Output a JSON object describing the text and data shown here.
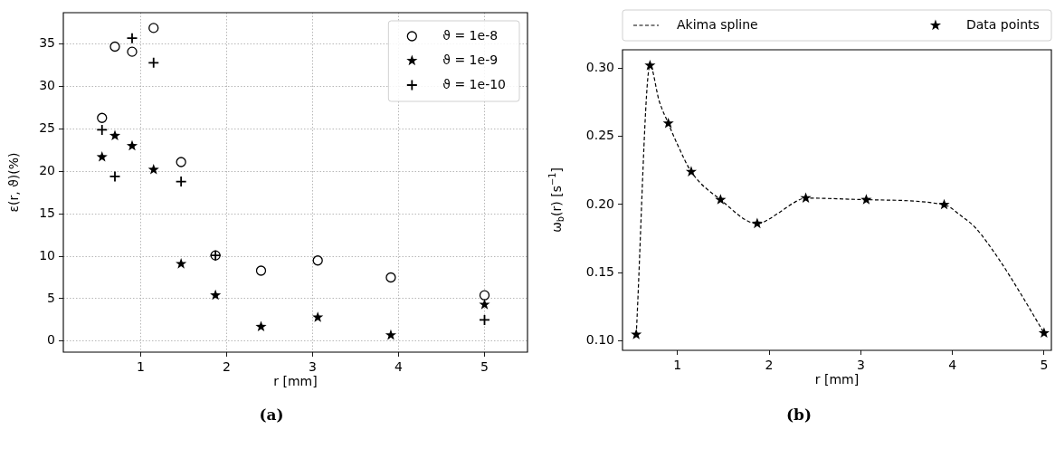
{
  "chart_data": [
    {
      "type": "scatter",
      "xlabel": "r [mm]",
      "ylabel": "ε(r, ϑ)(%)",
      "x": [
        0.55,
        0.7,
        0.9,
        1.15,
        1.47,
        1.87,
        2.4,
        3.06,
        3.91,
        5.0
      ],
      "series": [
        {
          "name": "ϑ = 1e-8",
          "color": "#000000",
          "marker": "circle",
          "values": [
            26.3,
            34.7,
            34.1,
            36.9,
            21.1,
            10.1,
            8.3,
            9.5,
            7.5,
            5.4
          ]
        },
        {
          "name": "ϑ = 1e-9",
          "color": "#000000",
          "marker": "star",
          "values": [
            21.7,
            24.2,
            23.0,
            20.2,
            9.1,
            5.4,
            1.7,
            2.8,
            0.7,
            4.3
          ]
        },
        {
          "name": "ϑ = 1e-10",
          "color": "#000000",
          "marker": "cross",
          "values": [
            24.9,
            19.4,
            35.7,
            32.8,
            18.8,
            10.1,
            null,
            null,
            null,
            2.5
          ]
        }
      ],
      "xlim": [
        0.1,
        5.5
      ],
      "ylim": [
        -1.3,
        38.7
      ],
      "xticks": [
        1,
        2,
        3,
        4,
        5
      ],
      "yticks": [
        0,
        5,
        10,
        15,
        20,
        25,
        30,
        35
      ],
      "grid": true,
      "legend": "top right",
      "annotations": [
        "(a)"
      ]
    },
    {
      "type": "scatter",
      "xlabel": "r [mm]",
      "ylabel": "ω$_{b}$(r) [s$^{−1}$]",
      "series": [
        {
          "name": "Akima spline",
          "type": "line",
          "color": "#000000",
          "marker": "none",
          "line_style": "dashed",
          "x": [
            0.55,
            0.7,
            0.8,
            0.9,
            1.0,
            1.15,
            1.47,
            1.87,
            2.1,
            2.25,
            2.4,
            3.06,
            3.91,
            4.1,
            4.25,
            4.5,
            4.75,
            5.0
          ],
          "values": [
            0.1046,
            0.302,
            0.276,
            0.2595,
            0.244,
            0.224,
            0.2035,
            0.186,
            0.1936,
            0.2005,
            0.2047,
            0.2035,
            0.1998,
            0.1914,
            0.183,
            0.1606,
            0.134,
            0.1057
          ]
        },
        {
          "name": "Data points",
          "type": "scatter",
          "color": "#000000",
          "marker": "star",
          "x": [
            0.55,
            0.7,
            0.9,
            1.15,
            1.47,
            1.87,
            2.4,
            3.06,
            3.91,
            5.0
          ],
          "values": [
            0.1046,
            0.302,
            0.2595,
            0.224,
            0.2035,
            0.186,
            0.2047,
            0.2035,
            0.1998,
            0.1057
          ]
        }
      ],
      "xlim": [
        0.4,
        5.08
      ],
      "ylim": [
        0.093,
        0.3135
      ],
      "xticks": [
        1,
        2,
        3,
        4,
        5
      ],
      "yticks": [
        {
          "value": 0.1,
          "label": "0.10"
        },
        {
          "value": 0.15,
          "label": "0.15"
        },
        {
          "value": 0.2,
          "label": "0.20"
        },
        {
          "value": 0.25,
          "label": "0.25"
        },
        {
          "value": 0.3,
          "label": "0.30"
        }
      ],
      "legend": "top",
      "annotations": [
        "(b)"
      ]
    }
  ]
}
